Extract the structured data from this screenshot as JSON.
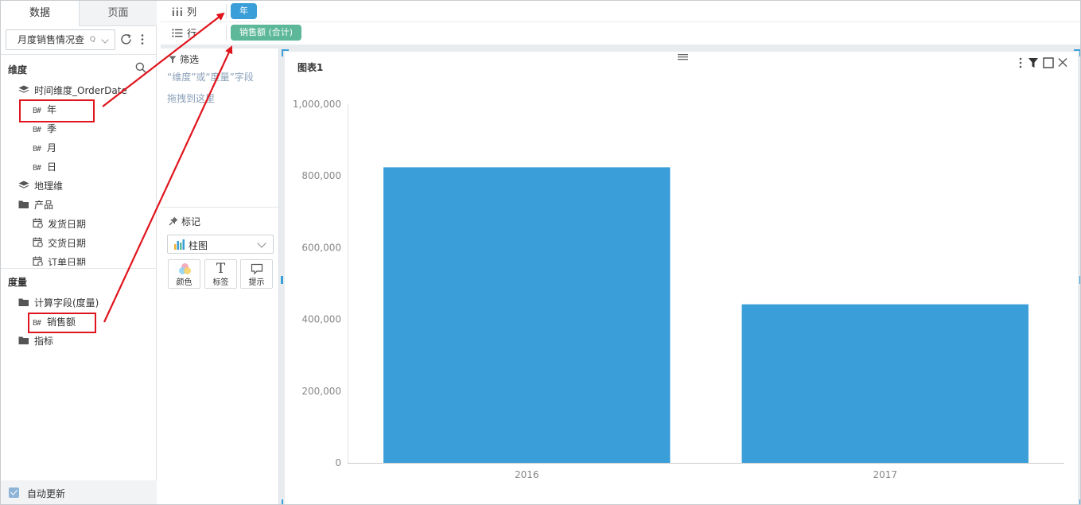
{
  "left_panel": {
    "tabs": [
      {
        "label": "数据",
        "active": true
      },
      {
        "label": "页面",
        "active": false
      }
    ],
    "datasource": {
      "value": "月度销售情况查",
      "search_glyph": "Q"
    },
    "dimension_title": "维度",
    "dimensions": [
      {
        "label": "时间维度_OrderDate",
        "icon": "layers-icon",
        "level": 0
      },
      {
        "label": "年",
        "icon": "field-tag",
        "level": 1,
        "tag": "B#"
      },
      {
        "label": "季",
        "icon": "field-tag",
        "level": 1,
        "tag": "B#"
      },
      {
        "label": "月",
        "icon": "field-tag",
        "level": 1,
        "tag": "B#"
      },
      {
        "label": "日",
        "icon": "field-tag",
        "level": 1,
        "tag": "B#"
      },
      {
        "label": "地理维",
        "icon": "layers-icon",
        "level": 0
      },
      {
        "label": "产品",
        "icon": "folder-icon",
        "level": 0
      },
      {
        "label": "发货日期",
        "icon": "calendar-icon",
        "level": 1
      },
      {
        "label": "交货日期",
        "icon": "calendar-icon",
        "level": 1
      },
      {
        "label": "订单日期",
        "icon": "calendar-icon",
        "level": 1
      }
    ],
    "measure_title": "度量",
    "measures": [
      {
        "label": "计算字段(度量)",
        "icon": "folder-icon",
        "level": 0
      },
      {
        "label": "销售额",
        "icon": "field-tag",
        "level": 1,
        "tag": "B#"
      },
      {
        "label": "指标",
        "icon": "folder-icon",
        "level": 0
      }
    ],
    "auto_update": {
      "label": "自动更新",
      "checked": true
    }
  },
  "shelves": {
    "columns": {
      "label": "列",
      "pill": "年",
      "pill_color": "#3a9ed8"
    },
    "rows": {
      "label": "行",
      "pill": "销售额 (合计)",
      "pill_color": "#5db899"
    }
  },
  "filter_panel": {
    "title": "筛选",
    "hint_line1": "“维度”或“度量”字段",
    "hint_line2": "拖拽到这里"
  },
  "marks_panel": {
    "title": "标记",
    "mark_type": "柱图",
    "buttons": [
      {
        "label": "颜色",
        "icon": "color-icon"
      },
      {
        "label": "标签",
        "icon": "text-icon"
      },
      {
        "label": "提示",
        "icon": "tooltip-icon"
      }
    ]
  },
  "chart_card": {
    "title": "图表1"
  },
  "chart_data": {
    "type": "bar",
    "title": "图表1",
    "categories": [
      "2016",
      "2017"
    ],
    "values": [
      824000,
      442000
    ],
    "ylim": [
      0,
      1000000
    ],
    "yticks": [
      0,
      200000,
      400000,
      600000,
      800000,
      1000000
    ],
    "ytick_labels": [
      "0",
      "200,000",
      "400,000",
      "600,000",
      "800,000",
      "1,000,000"
    ],
    "xlabel": "",
    "ylabel": "",
    "bar_color": "#3a9ed8",
    "grid": false
  },
  "colors": {
    "accent": "#3a9ed8",
    "measure_pill": "#5db899",
    "annotation_red": "#e0141d"
  }
}
